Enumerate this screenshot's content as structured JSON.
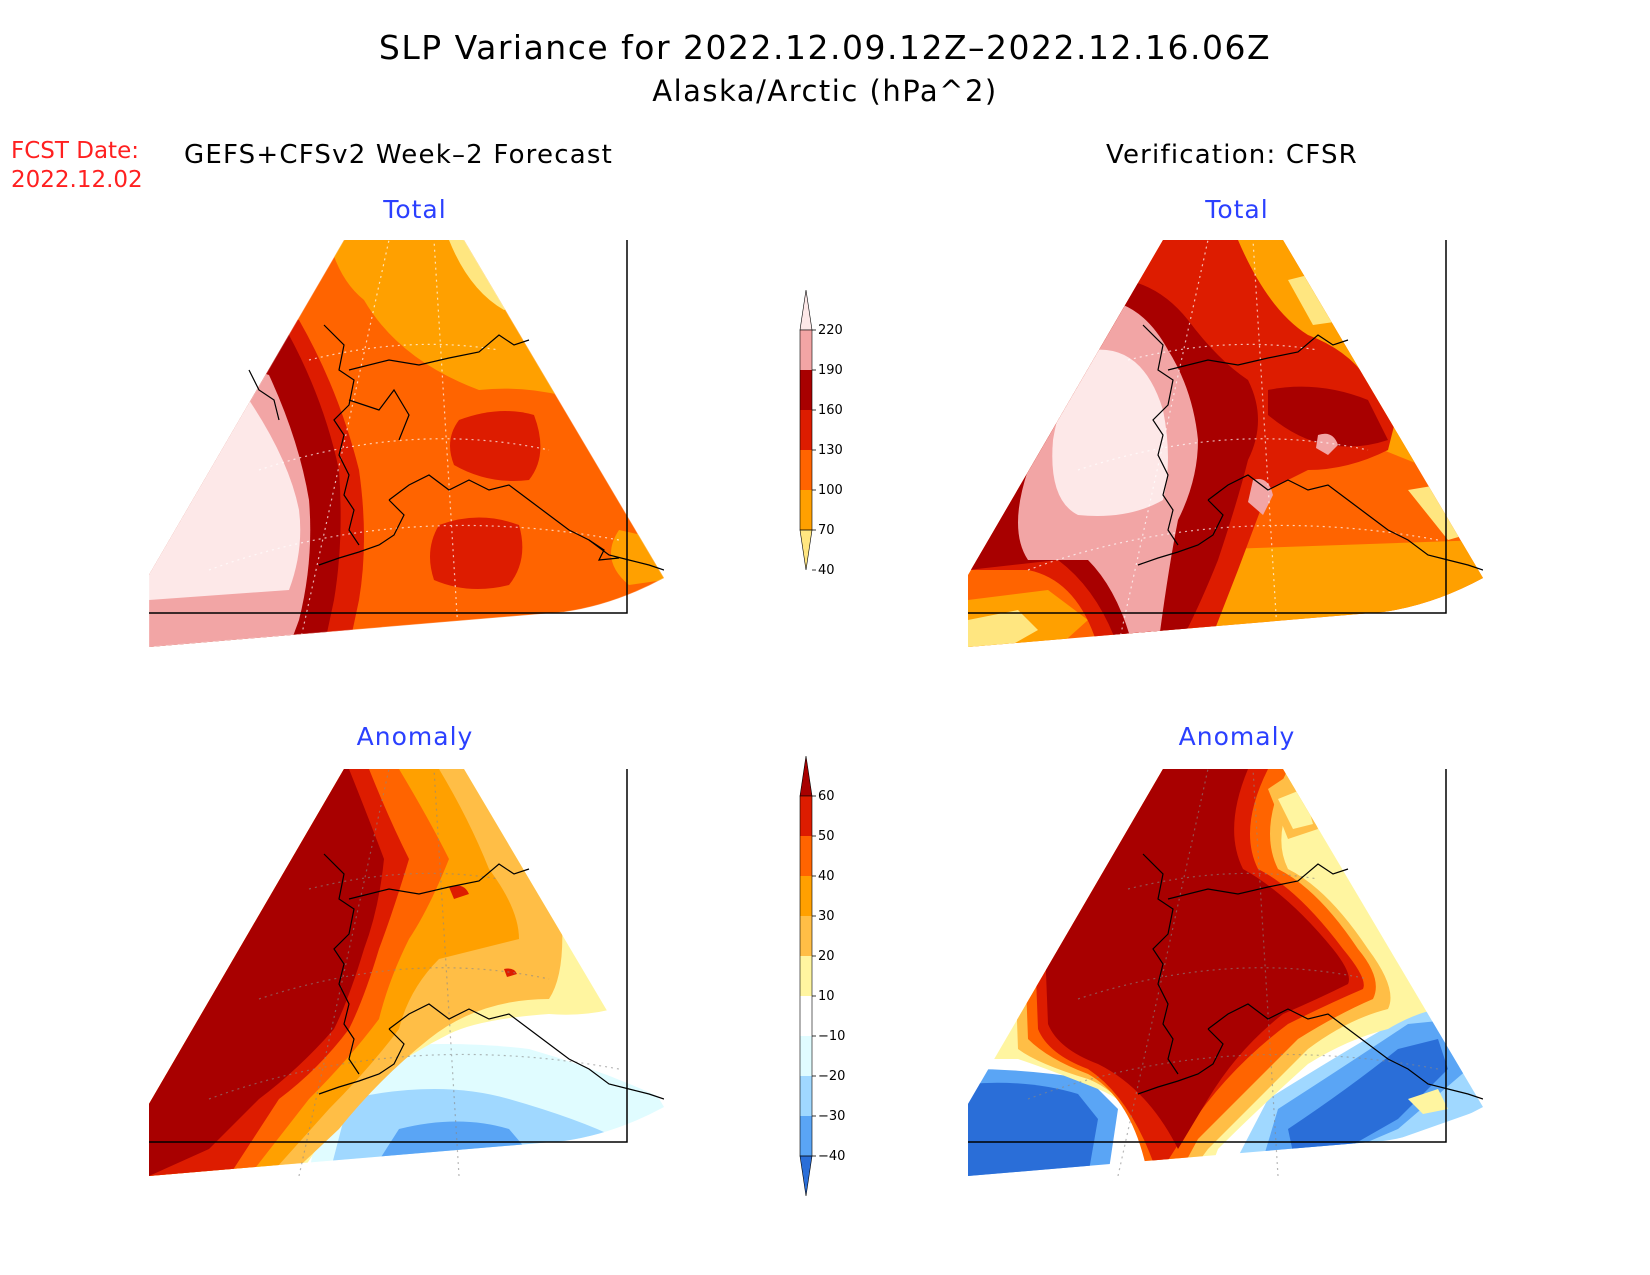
{
  "title": "SLP Variance for 2022.12.09.12Z–2022.12.16.06Z",
  "subtitle": "Alaska/Arctic (hPa^2)",
  "fcst_label": "FCST Date:",
  "fcst_date": "2022.12.02",
  "left_heading": "GEFS+CFSv2 Week–2 Forecast",
  "right_heading": "Verification: CFSR",
  "panels": {
    "fc_total_title": "Total",
    "vf_total_title": "Total",
    "fc_anom_title": "Anomaly",
    "vf_anom_title": "Anomaly"
  },
  "colorbars": {
    "total": {
      "labels": [
        "220",
        "190",
        "160",
        "130",
        "100",
        "70",
        "40"
      ],
      "colors": [
        "#fde8e8",
        "#f2a5a5",
        "#a80000",
        "#dd1c00",
        "#ff6400",
        "#ffa000",
        "#ffe680"
      ]
    },
    "anomaly": {
      "labels": [
        "60",
        "50",
        "40",
        "30",
        "20",
        "10",
        "−10",
        "−20",
        "−30",
        "−40"
      ],
      "colors": [
        "#a80000",
        "#dd1c00",
        "#ff6400",
        "#ffa000",
        "#ffbe46",
        "#fff5a0",
        "#ffffff",
        "#e0fcff",
        "#a0d8ff",
        "#5aa5f5",
        "#2a6ed8"
      ]
    }
  }
}
